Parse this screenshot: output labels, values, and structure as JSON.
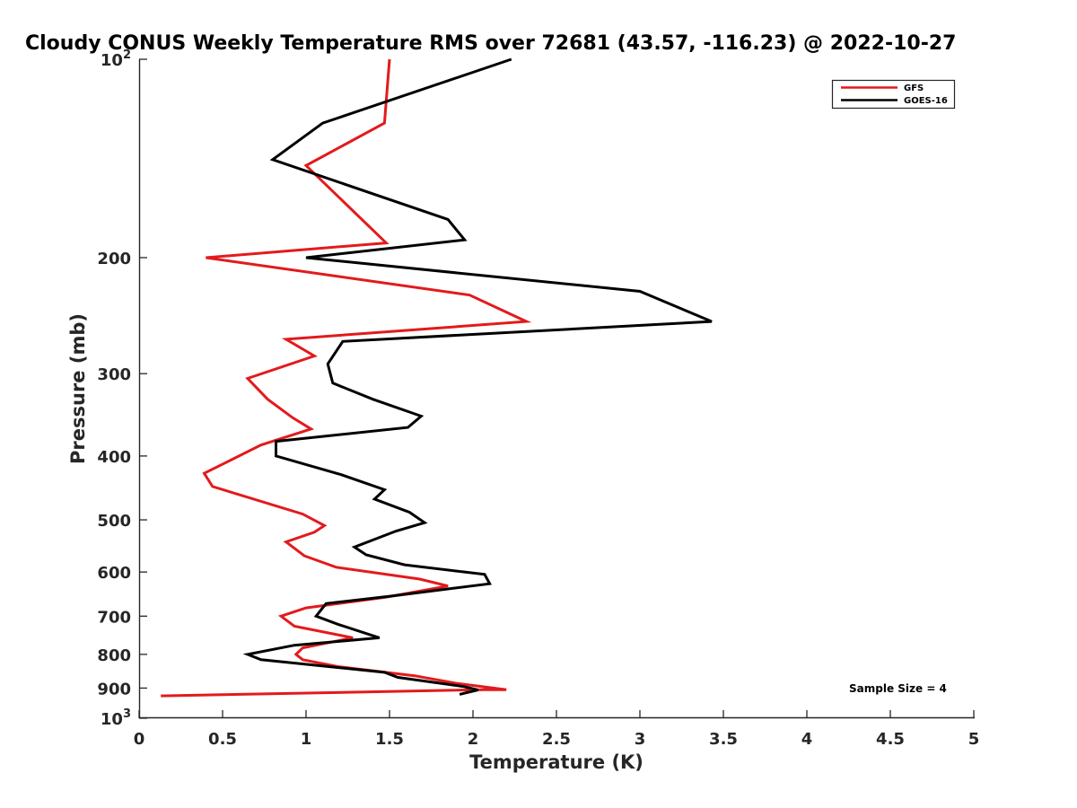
{
  "chart_data": {
    "type": "line",
    "title": "Cloudy CONUS Weekly Temperature RMS over 72681 (43.57, -116.23) @ 2022-10-27",
    "xlabel": "Temperature (K)",
    "ylabel": "Pressure (mb)",
    "xlim": [
      0,
      5
    ],
    "ylim": [
      100,
      1000
    ],
    "y_scale": "log",
    "y_reversed": true,
    "x_ticks": [
      "0",
      "0.5",
      "1",
      "1.5",
      "2",
      "2.5",
      "3",
      "3.5",
      "4",
      "4.5",
      "5"
    ],
    "y_ticks": [
      {
        "value": 100,
        "base": "10",
        "exp": "2"
      },
      {
        "value": 200,
        "label": "200"
      },
      {
        "value": 300,
        "label": "300"
      },
      {
        "value": 400,
        "label": "400"
      },
      {
        "value": 500,
        "label": "500"
      },
      {
        "value": 600,
        "label": "600"
      },
      {
        "value": 700,
        "label": "700"
      },
      {
        "value": 800,
        "label": "800"
      },
      {
        "value": 900,
        "label": "900"
      },
      {
        "value": 1000,
        "base": "10",
        "exp": "3"
      }
    ],
    "grid": false,
    "legend_position": "top-right",
    "annotation": "Sample Size = 4",
    "series": [
      {
        "name": "GFS",
        "color": "#e31a1c",
        "points": [
          [
            1.5,
            100
          ],
          [
            1.47,
            125
          ],
          [
            1.0,
            145
          ],
          [
            1.48,
            190
          ],
          [
            0.4,
            200
          ],
          [
            1.98,
            228
          ],
          [
            2.32,
            250
          ],
          [
            0.88,
            266
          ],
          [
            1.05,
            282
          ],
          [
            0.65,
            305
          ],
          [
            0.77,
            328
          ],
          [
            0.92,
            350
          ],
          [
            1.03,
            364
          ],
          [
            0.73,
            385
          ],
          [
            0.39,
            425
          ],
          [
            0.44,
            445
          ],
          [
            0.98,
            490
          ],
          [
            1.11,
            510
          ],
          [
            1.05,
            522
          ],
          [
            0.88,
            540
          ],
          [
            0.99,
            567
          ],
          [
            1.18,
            590
          ],
          [
            1.68,
            615
          ],
          [
            1.85,
            630
          ],
          [
            1.48,
            655
          ],
          [
            1.0,
            680
          ],
          [
            0.85,
            700
          ],
          [
            0.93,
            725
          ],
          [
            1.28,
            755
          ],
          [
            0.98,
            782
          ],
          [
            0.94,
            800
          ],
          [
            0.98,
            815
          ],
          [
            1.19,
            835
          ],
          [
            1.65,
            862
          ],
          [
            1.9,
            885
          ],
          [
            2.2,
            905
          ],
          [
            2.07,
            905
          ],
          [
            0.13,
            925
          ]
        ]
      },
      {
        "name": "GOES-16",
        "color": "#000000",
        "points": [
          [
            2.23,
            100
          ],
          [
            1.1,
            125
          ],
          [
            0.8,
            142
          ],
          [
            1.85,
            175
          ],
          [
            1.95,
            188
          ],
          [
            1.0,
            200
          ],
          [
            3.0,
            225
          ],
          [
            3.43,
            250
          ],
          [
            1.22,
            268
          ],
          [
            1.13,
            290
          ],
          [
            1.16,
            310
          ],
          [
            1.4,
            328
          ],
          [
            1.69,
            348
          ],
          [
            1.61,
            362
          ],
          [
            0.82,
            380
          ],
          [
            0.82,
            400
          ],
          [
            1.21,
            427
          ],
          [
            1.47,
            450
          ],
          [
            1.41,
            465
          ],
          [
            1.62,
            487
          ],
          [
            1.71,
            505
          ],
          [
            1.54,
            520
          ],
          [
            1.29,
            550
          ],
          [
            1.36,
            565
          ],
          [
            1.59,
            585
          ],
          [
            2.07,
            605
          ],
          [
            2.1,
            625
          ],
          [
            1.52,
            652
          ],
          [
            1.12,
            670
          ],
          [
            1.06,
            700
          ],
          [
            1.19,
            720
          ],
          [
            1.44,
            755
          ],
          [
            0.93,
            775
          ],
          [
            0.65,
            800
          ],
          [
            0.73,
            815
          ],
          [
            1.47,
            852
          ],
          [
            1.55,
            867
          ],
          [
            1.94,
            895
          ],
          [
            2.03,
            906
          ],
          [
            1.92,
            920
          ]
        ]
      }
    ]
  }
}
